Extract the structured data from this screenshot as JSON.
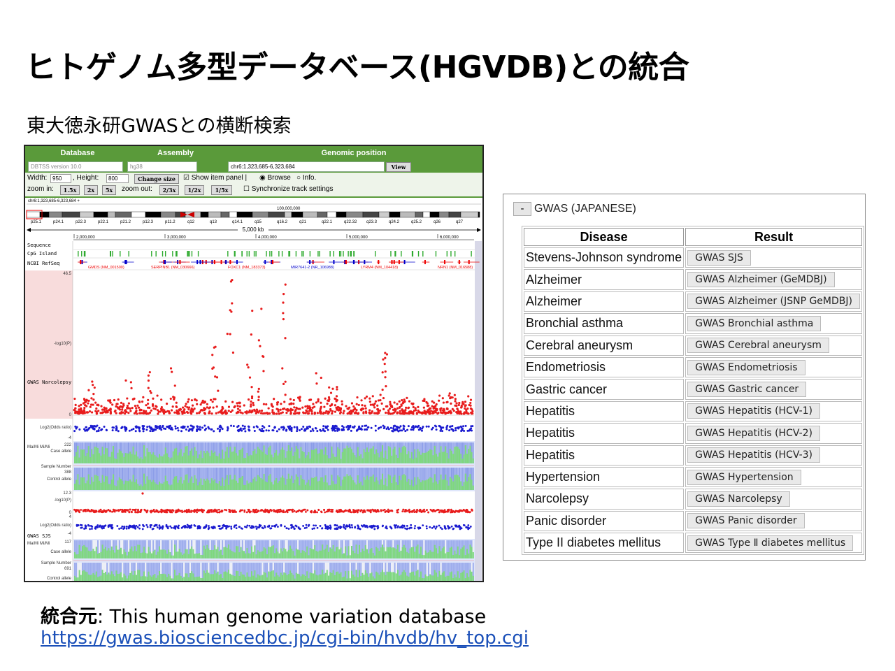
{
  "slide": {
    "title": "ヒトゲノム多型データベース(HGVDB)との統合",
    "subtitle": "東大徳永研GWASとの横断検索"
  },
  "browser": {
    "header": {
      "database": "Database",
      "assembly": "Assembly",
      "position": "Genomic position"
    },
    "database_value": "DBTSS version 10.0",
    "assembly_value": "hg38",
    "position_value": "chr6:1,323,685-6,323,684",
    "view_label": "View",
    "width_label": "Width:",
    "width_value": "950",
    "height_label": ", Height:",
    "height_value": "800",
    "change_size_label": "Change size",
    "show_item_panel": "☑ Show item panel |",
    "browse_label": "◉ Browse",
    "info_label": "○ Info.",
    "zoom_in_label": "zoom in:",
    "zoom_in_buttons": [
      "1.5x",
      "2x",
      "5x"
    ],
    "zoom_out_label": "zoom out:",
    "zoom_out_buttons": [
      "2/3x",
      "1/2x",
      "1/5x"
    ],
    "sync_label": "☐ Synchronize track settings",
    "ideogram_label": "chr6:1,323,685-6,323,684 +",
    "band_labels": [
      "p25.1",
      "p24.1",
      "p22.3",
      "p22.1",
      "p21.2",
      "p12.3",
      "p11.2",
      "q12",
      "q13",
      "q14.1",
      "q15",
      "q16.2",
      "q21",
      "q22.1",
      "q22.32",
      "q23.3",
      "q24.2",
      "q25.2",
      "q26",
      "q27"
    ],
    "ideogram_scale": "100,000,000",
    "ruler_label": "5,000 kb",
    "position_ticks": [
      "2,000,000",
      "3,000,000",
      "4,000,000",
      "5,000,000",
      "6,000,000"
    ],
    "track_labels": {
      "sequence": "Sequence",
      "cpg": "CpG Island",
      "refseq": "NCBI RefSeq",
      "narcolepsy": "GWAS Narcolepsy",
      "sjs": "GWAS SJS"
    },
    "gene_labels": [
      "GMDS (NM_001500)",
      "SERPINB1 (NM_030666)",
      "FOXC1 (NM_183373)",
      "MIR7641-2 (NR_106988)",
      "LYRM4 (NM_104418)",
      "NRN1 (NM_016588)"
    ],
    "axis_labels": {
      "max1": "46.5",
      "neglog": "-log10(P)",
      "zero": "0",
      "log2": "Log2(Odds ratio)",
      "four": "4",
      "minus4": "-4",
      "mamimi": "Ma/Mi  Mi/Mi",
      "case": "Case allele",
      "sample": "Sample Number",
      "control": "Control allele",
      "n222": "222",
      "n388": "388",
      "max2": "12.3",
      "n117": "117",
      "n691": "691"
    }
  },
  "gwas": {
    "collapse_label": "-",
    "title": "GWAS (JAPANESE)",
    "columns": [
      "Disease",
      "Result"
    ],
    "rows": [
      {
        "disease": "Stevens-Johnson syndrome",
        "result": "GWAS SJS"
      },
      {
        "disease": "Alzheimer",
        "result": "GWAS Alzheimer (GeMDBJ)"
      },
      {
        "disease": "Alzheimer",
        "result": "GWAS Alzheimer (JSNP GeMDBJ)"
      },
      {
        "disease": "Bronchial asthma",
        "result": "GWAS Bronchial asthma"
      },
      {
        "disease": "Cerebral aneurysm",
        "result": "GWAS Cerebral aneurysm"
      },
      {
        "disease": "Endometriosis",
        "result": "GWAS Endometriosis"
      },
      {
        "disease": "Gastric cancer",
        "result": "GWAS Gastric cancer"
      },
      {
        "disease": "Hepatitis",
        "result": "GWAS Hepatitis (HCV-1)"
      },
      {
        "disease": "Hepatitis",
        "result": "GWAS Hepatitis (HCV-2)"
      },
      {
        "disease": "Hepatitis",
        "result": "GWAS Hepatitis (HCV-3)"
      },
      {
        "disease": "Hypertension",
        "result": "GWAS Hypertension"
      },
      {
        "disease": "Narcolepsy",
        "result": "GWAS Narcolepsy"
      },
      {
        "disease": "Panic disorder",
        "result": "GWAS Panic disorder"
      },
      {
        "disease": "Type II diabetes mellitus",
        "result": "GWAS Type Ⅱ diabetes mellitus"
      }
    ]
  },
  "footer": {
    "prefix": "統合元",
    "text": ": This human genome variation database",
    "url": "https://gwas.biosciencedbc.jp/cgi-bin/hvdb/hv_top.cgi"
  },
  "colors": {
    "header_green": "#5a9a3a",
    "pvalue_red": "#e81c1c",
    "odds_blue": "#1a1ad0",
    "allele_green": "#7ed87e",
    "allele_blue": "#8a9be8",
    "link_blue": "#1a4fb8"
  }
}
